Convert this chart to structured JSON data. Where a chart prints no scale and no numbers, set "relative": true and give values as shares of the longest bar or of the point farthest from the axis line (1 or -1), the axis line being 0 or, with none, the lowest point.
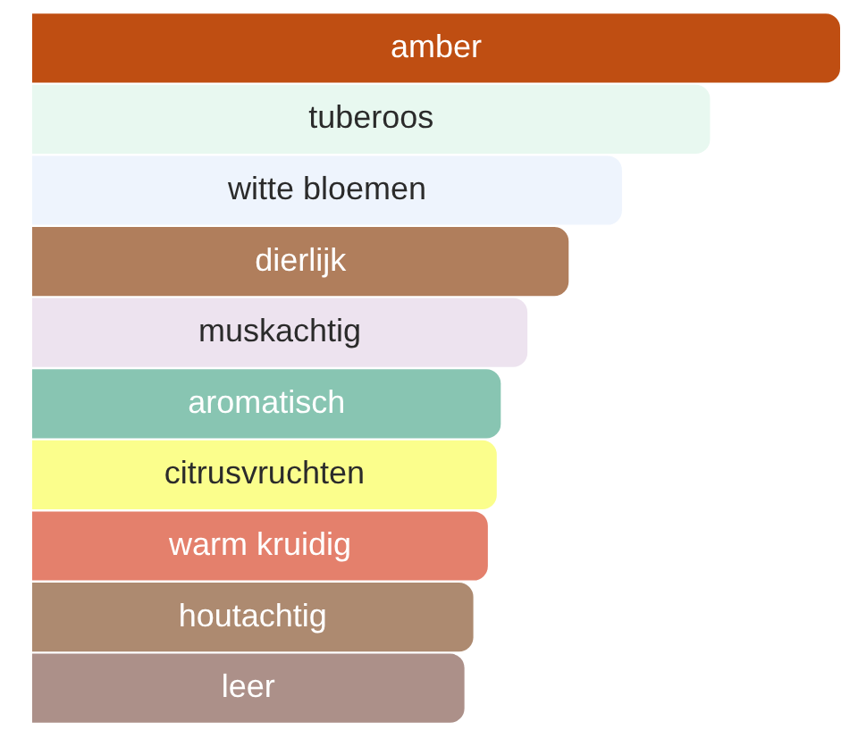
{
  "chart_data": {
    "type": "bar",
    "orientation": "horizontal",
    "relative": true,
    "legend": false,
    "categories": [
      "amber",
      "tuberoos",
      "witte bloemen",
      "dierlijk",
      "muskachtig",
      "aromatisch",
      "citrusvruchten",
      "warm kruidig",
      "houtachtig",
      "leer"
    ],
    "values": [
      1,
      0.839,
      0.73,
      0.664,
      0.613,
      0.58,
      0.575,
      0.564,
      0.546,
      0.535
    ],
    "colors": [
      "#bf4e12",
      "#e8f8f0",
      "#eef4fd",
      "#b07e5c",
      "#ede3ef",
      "#88c5b2",
      "#fbfe8c",
      "#e4806c",
      "#ad8a70",
      "#ac9089"
    ]
  }
}
